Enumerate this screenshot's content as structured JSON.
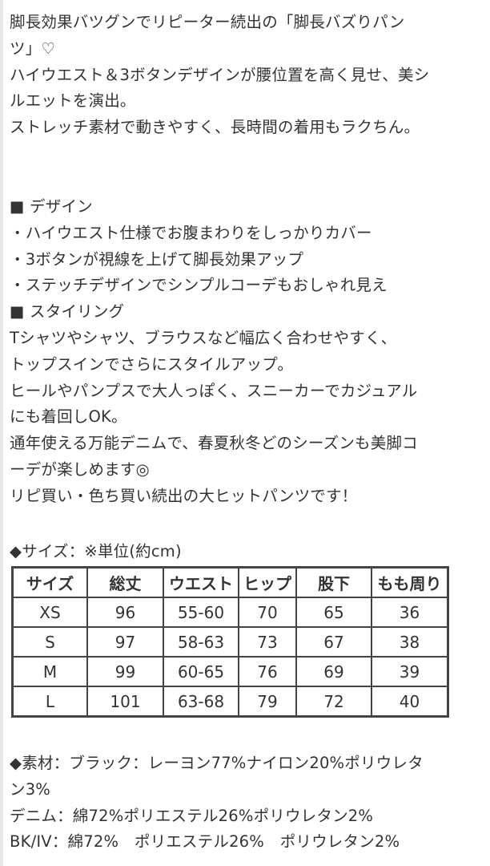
{
  "intro": [
    "脚長効果バツグンでリピーター続出の「脚長バズりパン",
    "ツ」♡",
    "ハイウエスト＆3ボタンデザインが腰位置を高く見せ、美シ",
    "ルエットを演出。",
    "ストレッチ素材で動きやすく、長時間の着用もラクちん。"
  ],
  "details": [
    "■ デザイン",
    "・ハイウエスト仕様でお腹まわりをしっかりカバー",
    "・3ボタンが視線を上げて脚長効果アップ",
    "・ステッチデザインでシンプルコーデもおしゃれ見え",
    "■ スタイリング",
    "Tシャツやシャツ、ブラウスなど幅広く合わせやすく、",
    "トップスインでさらにスタイルアップ。",
    "ヒールやパンプスで大人っぽく、スニーカーでカジュアル",
    "にも着回しOK。",
    "通年使える万能デニムで、春夏秋冬どのシーズンも美脚コ",
    "ーデが楽しめます◎",
    "リピ買い・色ち買い続出の大ヒットパンツです！"
  ],
  "size_title": "◆サイズ：※単位(約cm)",
  "size_table": {
    "headers": [
      "サイズ",
      "総丈",
      "ウエスト",
      "ヒップ",
      "股下",
      "もも周り"
    ],
    "rows": [
      [
        "XS",
        "96",
        "55-60",
        "70",
        "65",
        "36"
      ],
      [
        "S",
        "97",
        "58-63",
        "73",
        "67",
        "38"
      ],
      [
        "M",
        "99",
        "60-65",
        "76",
        "69",
        "39"
      ],
      [
        "L",
        "101",
        "63-68",
        "79",
        "72",
        "40"
      ]
    ]
  },
  "material": [
    "◆素材：ブラック：レーヨン77%ナイロン20%ポリウレタ",
    "ン3%",
    "デニム：綿72%ポリエステル26%ポリウレタン2%",
    "BK/IV：綿72%　ポリエステル26%　ポリウレタン2%"
  ]
}
